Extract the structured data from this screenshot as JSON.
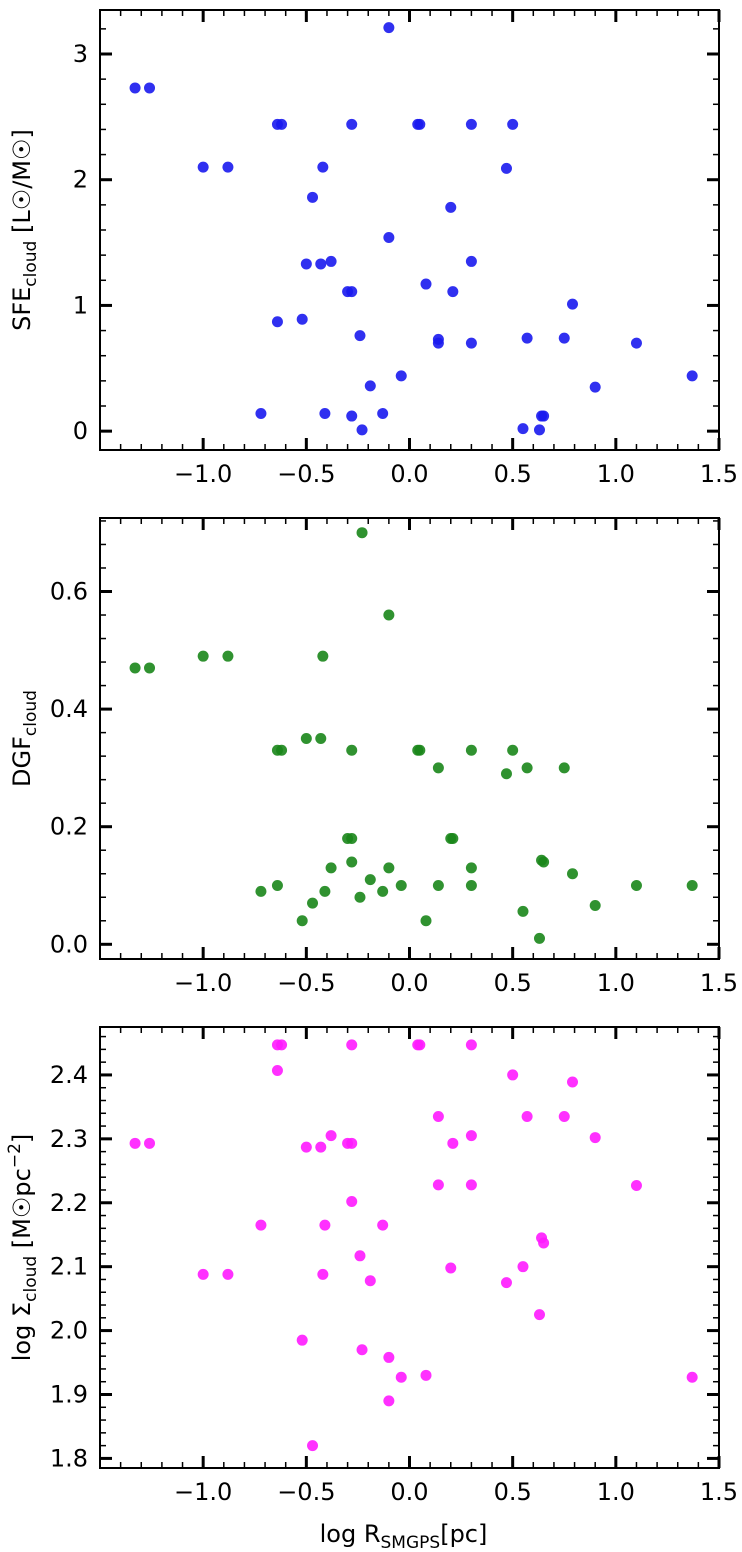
{
  "chart_data": [
    {
      "type": "scatter",
      "color": "#1a1aee",
      "ylabel": {
        "main": "SFE",
        "sub": "cloud",
        "rest": " [L☉/M☉]"
      },
      "xlim": [
        -1.5,
        1.5
      ],
      "ylim": [
        -0.15,
        3.35
      ],
      "xticks": [
        -1.0,
        -0.5,
        0.0,
        0.5,
        1.0,
        1.5
      ],
      "xtick_labels": [
        "−1.0",
        "−0.5",
        "0.0",
        "0.5",
        "1.0",
        "1.5"
      ],
      "yticks": [
        0,
        1,
        2,
        3
      ],
      "ytick_labels": [
        "0",
        "1",
        "2",
        "3"
      ],
      "x": [
        -1.33,
        -1.26,
        -1.0,
        -0.88,
        -0.72,
        -0.64,
        -0.64,
        -0.62,
        -0.52,
        -0.5,
        -0.47,
        -0.43,
        -0.42,
        -0.41,
        -0.38,
        -0.3,
        -0.28,
        -0.28,
        -0.28,
        -0.24,
        -0.23,
        -0.19,
        -0.13,
        -0.1,
        -0.1,
        -0.04,
        0.04,
        0.05,
        0.08,
        0.14,
        0.14,
        0.2,
        0.21,
        0.3,
        0.3,
        0.3,
        0.47,
        0.5,
        0.55,
        0.57,
        0.63,
        0.64,
        0.65,
        0.75,
        0.79,
        0.9,
        1.1,
        1.37
      ],
      "y": [
        2.73,
        2.73,
        2.1,
        2.1,
        0.14,
        2.44,
        0.87,
        2.44,
        0.89,
        1.33,
        1.86,
        1.33,
        2.1,
        0.14,
        1.35,
        1.11,
        1.11,
        2.44,
        0.12,
        0.76,
        0.01,
        0.36,
        0.14,
        3.21,
        1.54,
        0.44,
        2.44,
        2.44,
        1.17,
        0.73,
        0.7,
        1.78,
        1.11,
        2.44,
        1.35,
        0.7,
        2.09,
        2.44,
        0.02,
        0.74,
        0.01,
        0.12,
        0.12,
        0.74,
        1.01,
        0.35,
        0.7,
        0.44
      ]
    },
    {
      "type": "scatter",
      "color": "#1a861a",
      "ylabel": {
        "main": "DGF",
        "sub": "cloud",
        "rest": ""
      },
      "xlim": [
        -1.5,
        1.5
      ],
      "ylim": [
        -0.025,
        0.725
      ],
      "xticks": [
        -1.0,
        -0.5,
        0.0,
        0.5,
        1.0,
        1.5
      ],
      "xtick_labels": [
        "−1.0",
        "−0.5",
        "0.0",
        "0.5",
        "1.0",
        "1.5"
      ],
      "yticks": [
        0.0,
        0.2,
        0.4,
        0.6
      ],
      "ytick_labels": [
        "0.0",
        "0.2",
        "0.4",
        "0.6"
      ],
      "x": [
        -1.33,
        -1.26,
        -1.0,
        -0.88,
        -0.72,
        -0.64,
        -0.64,
        -0.62,
        -0.52,
        -0.5,
        -0.47,
        -0.43,
        -0.42,
        -0.41,
        -0.38,
        -0.3,
        -0.28,
        -0.28,
        -0.28,
        -0.24,
        -0.23,
        -0.19,
        -0.13,
        -0.1,
        -0.1,
        -0.04,
        0.04,
        0.05,
        0.08,
        0.14,
        0.14,
        0.2,
        0.21,
        0.3,
        0.3,
        0.3,
        0.47,
        0.5,
        0.55,
        0.57,
        0.63,
        0.64,
        0.65,
        0.75,
        0.79,
        0.9,
        1.1,
        1.37
      ],
      "y": [
        0.47,
        0.47,
        0.49,
        0.49,
        0.09,
        0.33,
        0.1,
        0.33,
        0.04,
        0.35,
        0.07,
        0.35,
        0.49,
        0.09,
        0.13,
        0.18,
        0.18,
        0.33,
        0.14,
        0.08,
        0.7,
        0.11,
        0.09,
        0.56,
        0.13,
        0.1,
        0.33,
        0.33,
        0.04,
        0.3,
        0.1,
        0.18,
        0.18,
        0.33,
        0.13,
        0.1,
        0.29,
        0.33,
        0.056,
        0.3,
        0.01,
        0.143,
        0.14,
        0.3,
        0.12,
        0.066,
        0.1,
        0.1
      ]
    },
    {
      "type": "scatter",
      "color": "#ff1aff",
      "xlabel": {
        "main": "log R",
        "sub": "SMGPS",
        "rest": "[pc]"
      },
      "ylabel": {
        "main": "log Σ",
        "sub": "cloud",
        "rest": " [M☉pc",
        "sup": "−2",
        "end": "]"
      },
      "xlim": [
        -1.5,
        1.5
      ],
      "ylim": [
        1.785,
        2.475
      ],
      "xticks": [
        -1.0,
        -0.5,
        0.0,
        0.5,
        1.0,
        1.5
      ],
      "xtick_labels": [
        "−1.0",
        "−0.5",
        "0.0",
        "0.5",
        "1.0",
        "1.5"
      ],
      "yticks": [
        1.8,
        1.9,
        2.0,
        2.1,
        2.2,
        2.3,
        2.4
      ],
      "ytick_labels": [
        "1.8",
        "1.9",
        "2.0",
        "2.1",
        "2.2",
        "2.3",
        "2.4"
      ],
      "x": [
        -1.33,
        -1.26,
        -1.0,
        -0.88,
        -0.72,
        -0.64,
        -0.64,
        -0.62,
        -0.52,
        -0.5,
        -0.47,
        -0.43,
        -0.42,
        -0.41,
        -0.38,
        -0.3,
        -0.28,
        -0.28,
        -0.28,
        -0.24,
        -0.23,
        -0.19,
        -0.13,
        -0.1,
        -0.1,
        -0.04,
        0.04,
        0.05,
        0.08,
        0.14,
        0.14,
        0.2,
        0.21,
        0.3,
        0.3,
        0.3,
        0.47,
        0.5,
        0.55,
        0.57,
        0.63,
        0.64,
        0.65,
        0.75,
        0.79,
        0.9,
        1.1,
        1.37
      ],
      "y": [
        2.293,
        2.293,
        2.088,
        2.088,
        2.165,
        2.447,
        2.407,
        2.447,
        1.985,
        2.287,
        1.82,
        2.287,
        2.088,
        2.165,
        2.305,
        2.293,
        2.293,
        2.447,
        2.202,
        2.117,
        1.97,
        2.078,
        2.165,
        1.958,
        1.89,
        1.927,
        2.447,
        2.447,
        1.93,
        2.335,
        2.228,
        2.098,
        2.293,
        2.447,
        2.305,
        2.228,
        2.075,
        2.4,
        2.1,
        2.335,
        2.025,
        2.145,
        2.137,
        2.335,
        2.389,
        2.302,
        2.227,
        1.927
      ]
    }
  ]
}
